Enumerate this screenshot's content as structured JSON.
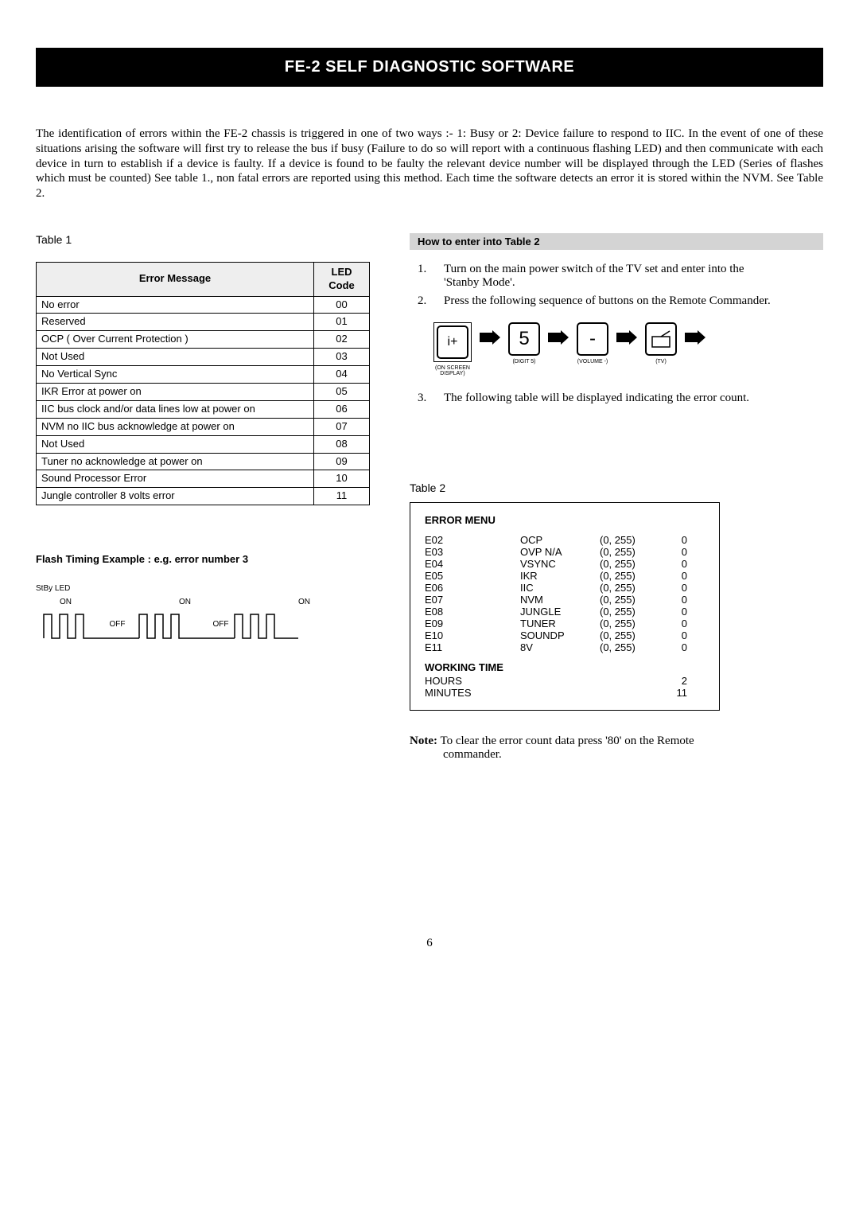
{
  "title_bar": "FE-2 SELF DIAGNOSTIC SOFTWARE",
  "intro_text": "The identification of errors within the FE-2 chassis is triggered in one of two ways :- 1: Busy or 2: Device failure to respond to IIC. In the event of one of these situations arising the software will first try to release the bus if busy (Failure to do so will report with a continuous flashing LED) and then communicate with each device in turn to establish if a device is faulty. If a device is found to be faulty the relevant device number will be displayed through the LED (Series of flashes which must be counted) See table 1., non fatal errors are reported using this method. Each time the software detects an error it is stored within the NVM. See Table 2.",
  "table1": {
    "label": "Table  1",
    "col_message": "Error Message",
    "col_code": "LED Code",
    "rows": [
      {
        "msg": "No error",
        "code": "00"
      },
      {
        "msg": "Reserved",
        "code": "01"
      },
      {
        "msg": "OCP ( Over Current Protection )",
        "code": "02"
      },
      {
        "msg": "Not Used",
        "code": "03"
      },
      {
        "msg": "No Vertical Sync",
        "code": "04"
      },
      {
        "msg": "IKR Error at power on",
        "code": "05"
      },
      {
        "msg": "IIC bus clock and/or data lines low at power on",
        "code": "06"
      },
      {
        "msg": "NVM no IIC bus acknowledge at power on",
        "code": "07"
      },
      {
        "msg": "Not Used",
        "code": "08"
      },
      {
        "msg": "Tuner no acknowledge at power on",
        "code": "09"
      },
      {
        "msg": "Sound Processor Error",
        "code": "10"
      },
      {
        "msg": "Jungle controller 8 volts error",
        "code": "11"
      }
    ]
  },
  "howto": {
    "header": "How to enter into Table 2",
    "step1": "Turn on the main power switch of the TV set and enter into the",
    "step1b": "'Stanby Mode'.",
    "step2": "Press the following sequence of buttons on the Remote Commander.",
    "step3": "The following table will be displayed indicating the error count.",
    "btn_iplus": "i+",
    "btn_5": "5",
    "btn_minus": "-",
    "cap_osd_a": "(ON SCREEN",
    "cap_osd_b": "DISPLAY)",
    "cap_digit5": "(DIGIT 5)",
    "cap_volminus": "(VOLUME -)",
    "cap_tv": "(TV)"
  },
  "flash": {
    "heading": "Flash Timing Example : e.g. error number 3",
    "stby": "StBy LED",
    "on": "ON",
    "off": "OFF"
  },
  "table2": {
    "label": "Table  2",
    "title": "ERROR MENU",
    "rows": [
      {
        "code": "E02",
        "name": "OCP",
        "range": "(0, 255)",
        "val": "0"
      },
      {
        "code": "E03",
        "name": "OVP  N/A",
        "range": "(0, 255)",
        "val": "0"
      },
      {
        "code": "E04",
        "name": "VSYNC",
        "range": "(0, 255)",
        "val": "0"
      },
      {
        "code": "E05",
        "name": "IKR",
        "range": "(0, 255)",
        "val": "0"
      },
      {
        "code": "E06",
        "name": "IIC",
        "range": "(0, 255)",
        "val": "0"
      },
      {
        "code": "E07",
        "name": "NVM",
        "range": "(0, 255)",
        "val": "0"
      },
      {
        "code": "E08",
        "name": "JUNGLE",
        "range": "(0, 255)",
        "val": "0"
      },
      {
        "code": "E09",
        "name": "TUNER",
        "range": "(0, 255)",
        "val": "0"
      },
      {
        "code": "E10",
        "name": "SOUNDP",
        "range": "(0, 255)",
        "val": "0"
      },
      {
        "code": "E11",
        "name": "8V",
        "range": "(0, 255)",
        "val": "0"
      }
    ],
    "working_time_hdr": "WORKING TIME",
    "hours_label": "HOURS",
    "hours_value": "2",
    "minutes_label": "MINUTES",
    "minutes_value": "11"
  },
  "note": {
    "label": "Note:",
    "text_a": " To clear the error count data press '80' on the Remote",
    "text_b": "commander."
  },
  "page_number": "6",
  "colors": {
    "text": "#000000",
    "background": "#ffffff",
    "title_bg": "#000000",
    "title_fg": "#ffffff",
    "table_header_bg": "#eeeeee",
    "howto_header_bg": "#d4d4d4",
    "border": "#000000"
  }
}
